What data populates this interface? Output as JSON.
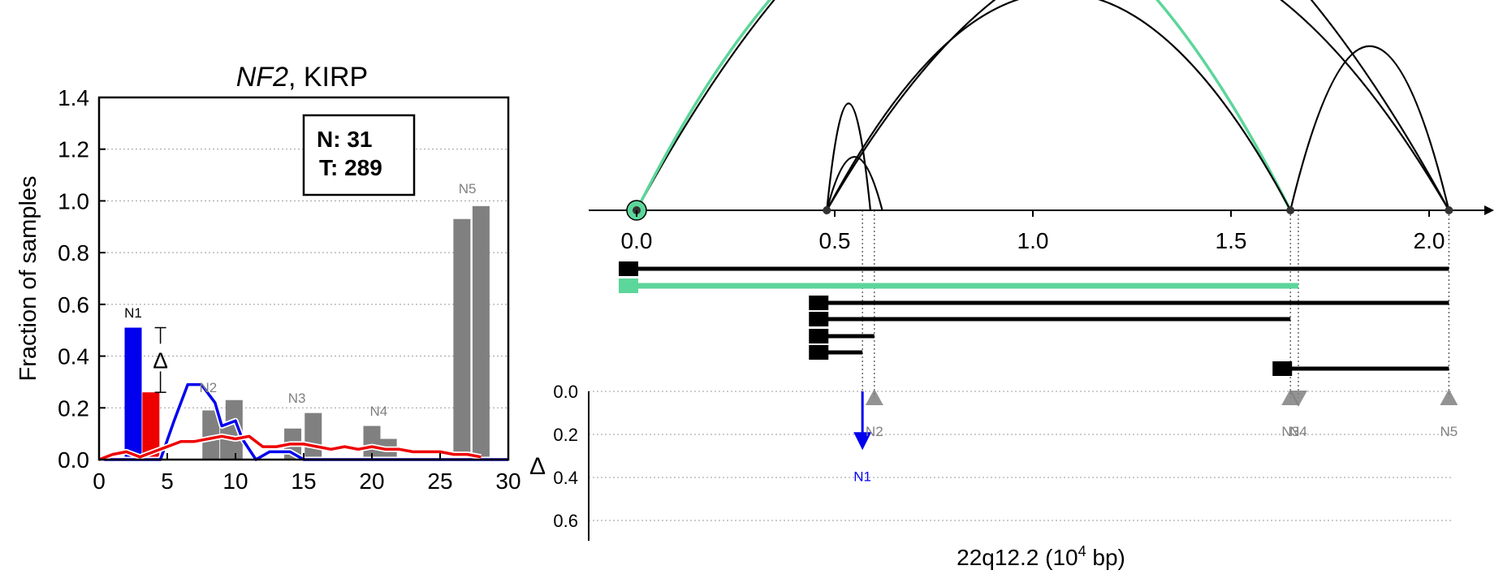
{
  "chart_data": [
    {
      "type": "bar",
      "title_gene": "NF2",
      "title_rest": ", KIRP",
      "ylabel": "Fraction of samples",
      "xlim": [
        0,
        30
      ],
      "ylim": [
        0,
        1.4
      ],
      "x_ticks": [
        "0",
        "5",
        "10",
        "15",
        "20",
        "25",
        "30"
      ],
      "y_ticks": [
        "0.0",
        "0.2",
        "0.4",
        "0.6",
        "0.8",
        "1.0",
        "1.2",
        "1.4"
      ],
      "grid": "horizontal dotted",
      "legend_box": {
        "n_label": "N: 31",
        "t_label": "T: 289"
      },
      "delta_symbol": "Δ",
      "colors": {
        "normal": "#0000ee",
        "tumor": "#ee0000",
        "other": "#808080"
      },
      "highlight_bars": [
        {
          "series": "N",
          "x": 2.5,
          "value": 0.51,
          "color": "#0000ee"
        },
        {
          "series": "T",
          "x": 3.8,
          "value": 0.26,
          "color": "#ee0000"
        }
      ],
      "gray_bars": [
        {
          "x": 8.2,
          "value": 0.19
        },
        {
          "x": 9.5,
          "value": 0.14
        },
        {
          "x": 9.9,
          "value": 0.23
        },
        {
          "x": 14.2,
          "value": 0.12
        },
        {
          "x": 15.7,
          "value": 0.18
        },
        {
          "x": 20.0,
          "value": 0.13
        },
        {
          "x": 21.2,
          "value": 0.08
        },
        {
          "x": 26.6,
          "value": 0.93
        },
        {
          "x": 28.0,
          "value": 0.98
        }
      ],
      "normal_curve": {
        "x": [
          0,
          4.5,
          5.5,
          6.5,
          7.5,
          8.5,
          9,
          10,
          10.5,
          11.5,
          12.5,
          14,
          15,
          30
        ],
        "y": [
          0,
          0,
          0.15,
          0.29,
          0.29,
          0.22,
          0.13,
          0.15,
          0.08,
          0,
          0.03,
          0.03,
          0,
          0
        ]
      },
      "tumor_curve": {
        "x": [
          0,
          1,
          2,
          3,
          4,
          5,
          6,
          7,
          8,
          9,
          10,
          11,
          12,
          13,
          14,
          15,
          16,
          17,
          18,
          19,
          20,
          21,
          22,
          23,
          24,
          25,
          26,
          27,
          28
        ],
        "y": [
          0,
          0.02,
          0.03,
          0.01,
          0.03,
          0.05,
          0.07,
          0.07,
          0.08,
          0.09,
          0.08,
          0.09,
          0.05,
          0.05,
          0.06,
          0.06,
          0.05,
          0.04,
          0.05,
          0.04,
          0.05,
          0.04,
          0.04,
          0.03,
          0.03,
          0.03,
          0.02,
          0.02,
          0.01
        ]
      },
      "peak_labels": [
        {
          "text": "N1",
          "x": 2.5,
          "y": 0.55
        },
        {
          "text": "N2",
          "x": 8.0,
          "y": 0.26
        },
        {
          "text": "N3",
          "x": 14.5,
          "y": 0.22
        },
        {
          "text": "N4",
          "x": 20.5,
          "y": 0.17
        },
        {
          "text": "N5",
          "x": 27.0,
          "y": 1.03
        }
      ]
    },
    {
      "type": "arc-diagram",
      "xlabel_main": "22q12.2 (10",
      "xlabel_sup": "4",
      "xlabel_end": " bp)",
      "xlim": [
        0,
        2.1
      ],
      "x_ticks": [
        "0.0",
        "0.5",
        "1.0",
        "1.5",
        "2.0"
      ],
      "nodes": [
        0.0,
        0.48,
        1.65,
        2.05
      ],
      "highlight_node": 0.0,
      "arcs": [
        {
          "from": 0.0,
          "to": 2.05,
          "height": 0.98,
          "color": "#000000"
        },
        {
          "from": 0.0,
          "to": 1.65,
          "height": 0.85,
          "color": "#5cd69a"
        },
        {
          "from": 0.48,
          "to": 2.05,
          "height": 0.7,
          "color": "#000000"
        },
        {
          "from": 0.48,
          "to": 1.65,
          "height": 0.57,
          "color": "#000000"
        },
        {
          "from": 0.48,
          "to": 0.59,
          "height": 0.28,
          "color": "#000000"
        },
        {
          "from": 0.48,
          "to": 0.62,
          "height": 0.14,
          "color": "#000000"
        },
        {
          "from": 1.65,
          "to": 2.05,
          "height": 0.43,
          "color": "#000000"
        }
      ],
      "isoforms": [
        {
          "start": 0.0,
          "end": 2.05,
          "color": "#000000"
        },
        {
          "start": 0.0,
          "end": 1.67,
          "color": "#5cd69a"
        },
        {
          "start": 0.48,
          "end": 2.05,
          "color": "#000000"
        },
        {
          "start": 0.48,
          "end": 1.65,
          "color": "#000000"
        },
        {
          "start": 0.48,
          "end": 0.6,
          "color": "#000000"
        },
        {
          "start": 0.48,
          "end": 0.57,
          "color": "#000000"
        },
        {
          "start": 1.65,
          "end": 2.05,
          "color": "#000000"
        }
      ],
      "dotted_positions": [
        0.57,
        0.6,
        1.65,
        1.67,
        2.05
      ],
      "delta_axis": {
        "label": "Δ",
        "ylim": [
          0,
          0.7
        ],
        "y_ticks": [
          "0.0",
          "0.2",
          "0.4",
          "0.6"
        ],
        "markers": [
          {
            "label": "N1",
            "x": 0.57,
            "delta": 0.25,
            "color": "#0000ee",
            "type": "arrow"
          },
          {
            "label": "N2",
            "x": 0.6,
            "delta": 0.0,
            "color": "#808080",
            "type": "triangle-up"
          },
          {
            "label": "N3",
            "x": 1.65,
            "delta": 0.0,
            "color": "#808080",
            "type": "triangle-up"
          },
          {
            "label": "N4",
            "x": 1.67,
            "delta": 0.0,
            "color": "#808080",
            "type": "triangle-down"
          },
          {
            "label": "N5",
            "x": 2.05,
            "delta": 0.0,
            "color": "#808080",
            "type": "triangle-up"
          }
        ]
      }
    }
  ]
}
